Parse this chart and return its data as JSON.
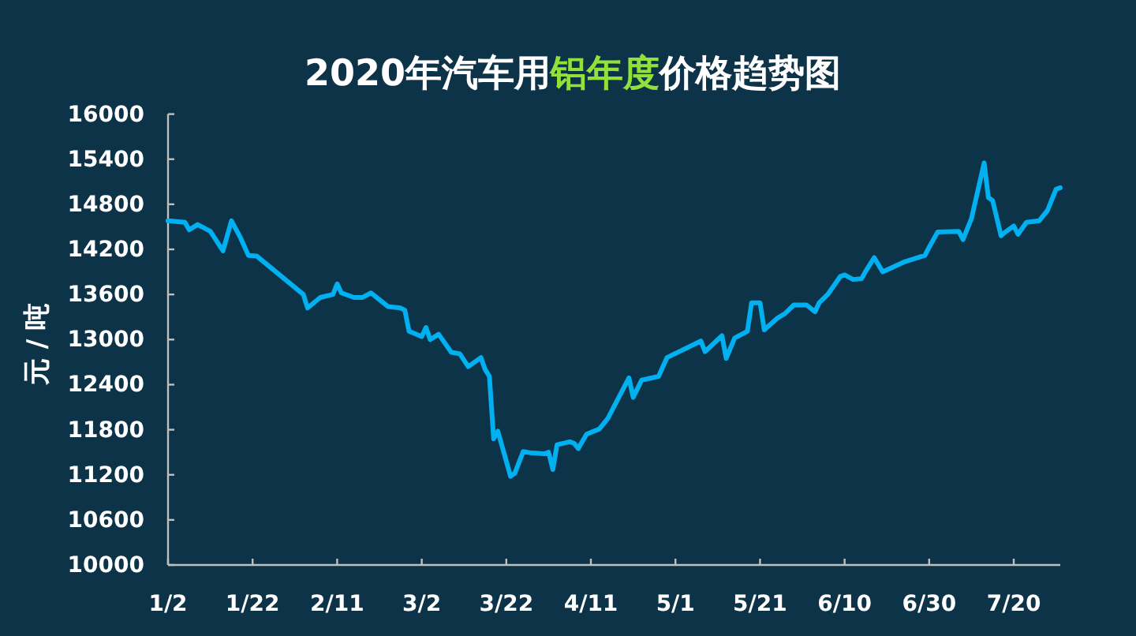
{
  "chart_data": {
    "type": "line",
    "title": "2020年汽车用铝年度价格趋势图",
    "ylabel": "元 / 吨",
    "x": [
      "2020-01-02",
      "2020-01-06",
      "2020-01-07",
      "2020-01-09",
      "2020-01-12",
      "2020-01-15",
      "2020-01-17",
      "2020-01-19",
      "2020-01-21",
      "2020-01-23",
      "2020-02-03",
      "2020-02-04",
      "2020-02-07",
      "2020-02-10",
      "2020-02-11",
      "2020-02-12",
      "2020-02-15",
      "2020-02-17",
      "2020-02-19",
      "2020-02-21",
      "2020-02-23",
      "2020-02-26",
      "2020-02-27",
      "2020-02-28",
      "2020-03-02",
      "2020-03-03",
      "2020-03-04",
      "2020-03-06",
      "2020-03-09",
      "2020-03-11",
      "2020-03-13",
      "2020-03-16",
      "2020-03-17",
      "2020-03-18",
      "2020-03-19",
      "2020-03-20",
      "2020-03-23",
      "2020-03-24",
      "2020-03-26",
      "2020-03-28",
      "2020-03-31",
      "2020-04-01",
      "2020-04-02",
      "2020-04-03",
      "2020-04-06",
      "2020-04-07",
      "2020-04-08",
      "2020-04-10",
      "2020-04-13",
      "2020-04-15",
      "2020-04-20",
      "2020-04-21",
      "2020-04-23",
      "2020-04-27",
      "2020-04-29",
      "2020-05-07",
      "2020-05-08",
      "2020-05-12",
      "2020-05-13",
      "2020-05-15",
      "2020-05-18",
      "2020-05-19",
      "2020-05-21",
      "2020-05-22",
      "2020-05-25",
      "2020-05-27",
      "2020-05-29",
      "2020-06-01",
      "2020-06-03",
      "2020-06-04",
      "2020-06-06",
      "2020-06-09",
      "2020-06-10",
      "2020-06-12",
      "2020-06-14",
      "2020-06-15",
      "2020-06-17",
      "2020-06-19",
      "2020-06-24",
      "2020-06-29",
      "2020-06-30",
      "2020-07-02",
      "2020-07-07",
      "2020-07-08",
      "2020-07-10",
      "2020-07-13",
      "2020-07-14",
      "2020-07-15",
      "2020-07-17",
      "2020-07-18",
      "2020-07-20",
      "2020-07-21",
      "2020-07-23",
      "2020-07-26",
      "2020-07-28",
      "2020-07-30",
      "2020-07-31"
    ],
    "series": [
      {
        "color": "#00b0f0",
        "values": [
          14580,
          14560,
          14460,
          14530,
          14440,
          14180,
          14580,
          14370,
          14120,
          14110,
          13600,
          13420,
          13560,
          13600,
          13740,
          13620,
          13560,
          13560,
          13620,
          13530,
          13440,
          13420,
          13390,
          13110,
          13040,
          13160,
          13000,
          13070,
          12830,
          12810,
          12640,
          12760,
          12600,
          12510,
          11680,
          11780,
          11180,
          11220,
          11510,
          11490,
          11480,
          11500,
          11270,
          11600,
          11640,
          11620,
          11550,
          11740,
          11810,
          11950,
          12490,
          12230,
          12460,
          12510,
          12760,
          12980,
          12840,
          13050,
          12750,
          13020,
          13110,
          13490,
          13490,
          13130,
          13280,
          13350,
          13460,
          13460,
          13370,
          13490,
          13600,
          13840,
          13860,
          13800,
          13810,
          13910,
          14090,
          13900,
          14030,
          14120,
          14230,
          14430,
          14440,
          14330,
          14610,
          15350,
          14890,
          14850,
          14380,
          14430,
          14510,
          14400,
          14560,
          14580,
          14720,
          15000,
          15020
        ]
      }
    ],
    "xlim": [
      "2020-01-02",
      "2020-07-31"
    ],
    "xticks": [
      {
        "value": "2020-01-02",
        "label": "1/2"
      },
      {
        "value": "2020-01-22",
        "label": "1/22"
      },
      {
        "value": "2020-02-11",
        "label": "2/11"
      },
      {
        "value": "2020-03-02",
        "label": "3/2"
      },
      {
        "value": "2020-03-22",
        "label": "3/22"
      },
      {
        "value": "2020-04-11",
        "label": "4/11"
      },
      {
        "value": "2020-05-01",
        "label": "5/1"
      },
      {
        "value": "2020-05-21",
        "label": "5/21"
      },
      {
        "value": "2020-06-10",
        "label": "6/10"
      },
      {
        "value": "2020-06-30",
        "label": "6/30"
      },
      {
        "value": "2020-07-20",
        "label": "7/20"
      }
    ],
    "ylim": [
      10000,
      16000
    ],
    "yticks": [
      10000,
      10600,
      11200,
      11800,
      12400,
      13000,
      13600,
      14200,
      14800,
      15400,
      16000
    ],
    "marker": "none",
    "line_style": "solid"
  }
}
